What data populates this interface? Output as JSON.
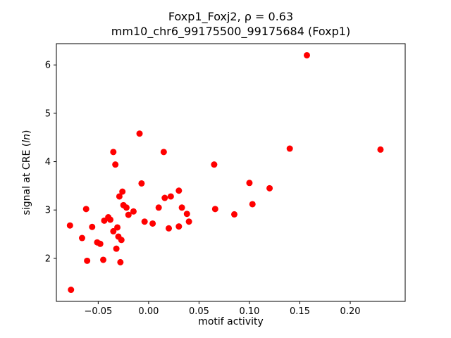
{
  "chart_data": {
    "type": "scatter",
    "title_line1": "Foxp1_Foxj2, ρ = 0.63",
    "title_line2": "mm10_chr6_99175500_99175684 (Foxp1)",
    "xlabel": "motif activity",
    "ylabel_pre": "signal at CRE (",
    "ylabel_italic": "ln",
    "ylabel_post": ")",
    "marker_color": "#ff0000",
    "axis_color": "#000000",
    "xlim": [
      -0.0915,
      0.2545
    ],
    "ylim": [
      1.11,
      6.44
    ],
    "xticks": [
      -0.05,
      0.0,
      0.05,
      0.1,
      0.15,
      0.2
    ],
    "xtick_labels": [
      "−0.05",
      "0.00",
      "0.05",
      "0.10",
      "0.15",
      "0.20"
    ],
    "yticks": [
      2,
      3,
      4,
      5,
      6
    ],
    "ytick_labels": [
      "2",
      "3",
      "4",
      "5",
      "6"
    ],
    "legend": "none",
    "grid": false,
    "points": [
      [
        -0.078,
        2.68
      ],
      [
        -0.077,
        1.35
      ],
      [
        -0.066,
        2.42
      ],
      [
        -0.062,
        3.02
      ],
      [
        -0.061,
        1.95
      ],
      [
        -0.056,
        2.65
      ],
      [
        -0.051,
        2.33
      ],
      [
        -0.048,
        2.3
      ],
      [
        -0.045,
        1.97
      ],
      [
        -0.044,
        2.78
      ],
      [
        -0.04,
        2.85
      ],
      [
        -0.038,
        2.8
      ],
      [
        -0.035,
        4.2
      ],
      [
        -0.035,
        2.56
      ],
      [
        -0.033,
        3.94
      ],
      [
        -0.032,
        2.2
      ],
      [
        -0.031,
        2.64
      ],
      [
        -0.03,
        2.45
      ],
      [
        -0.029,
        3.28
      ],
      [
        -0.028,
        1.92
      ],
      [
        -0.027,
        2.38
      ],
      [
        -0.026,
        3.38
      ],
      [
        -0.025,
        3.1
      ],
      [
        -0.022,
        3.05
      ],
      [
        -0.02,
        2.9
      ],
      [
        -0.015,
        2.97
      ],
      [
        -0.009,
        4.58
      ],
      [
        -0.007,
        3.55
      ],
      [
        -0.004,
        2.76
      ],
      [
        0.004,
        2.72
      ],
      [
        0.01,
        3.05
      ],
      [
        0.015,
        4.2
      ],
      [
        0.016,
        3.25
      ],
      [
        0.02,
        2.62
      ],
      [
        0.022,
        3.28
      ],
      [
        0.03,
        3.4
      ],
      [
        0.03,
        2.66
      ],
      [
        0.033,
        3.05
      ],
      [
        0.038,
        2.92
      ],
      [
        0.04,
        2.76
      ],
      [
        0.065,
        3.94
      ],
      [
        0.066,
        3.02
      ],
      [
        0.085,
        2.91
      ],
      [
        0.1,
        3.56
      ],
      [
        0.103,
        3.12
      ],
      [
        0.12,
        3.45
      ],
      [
        0.14,
        4.27
      ],
      [
        0.157,
        6.2
      ],
      [
        0.23,
        4.25
      ]
    ]
  }
}
